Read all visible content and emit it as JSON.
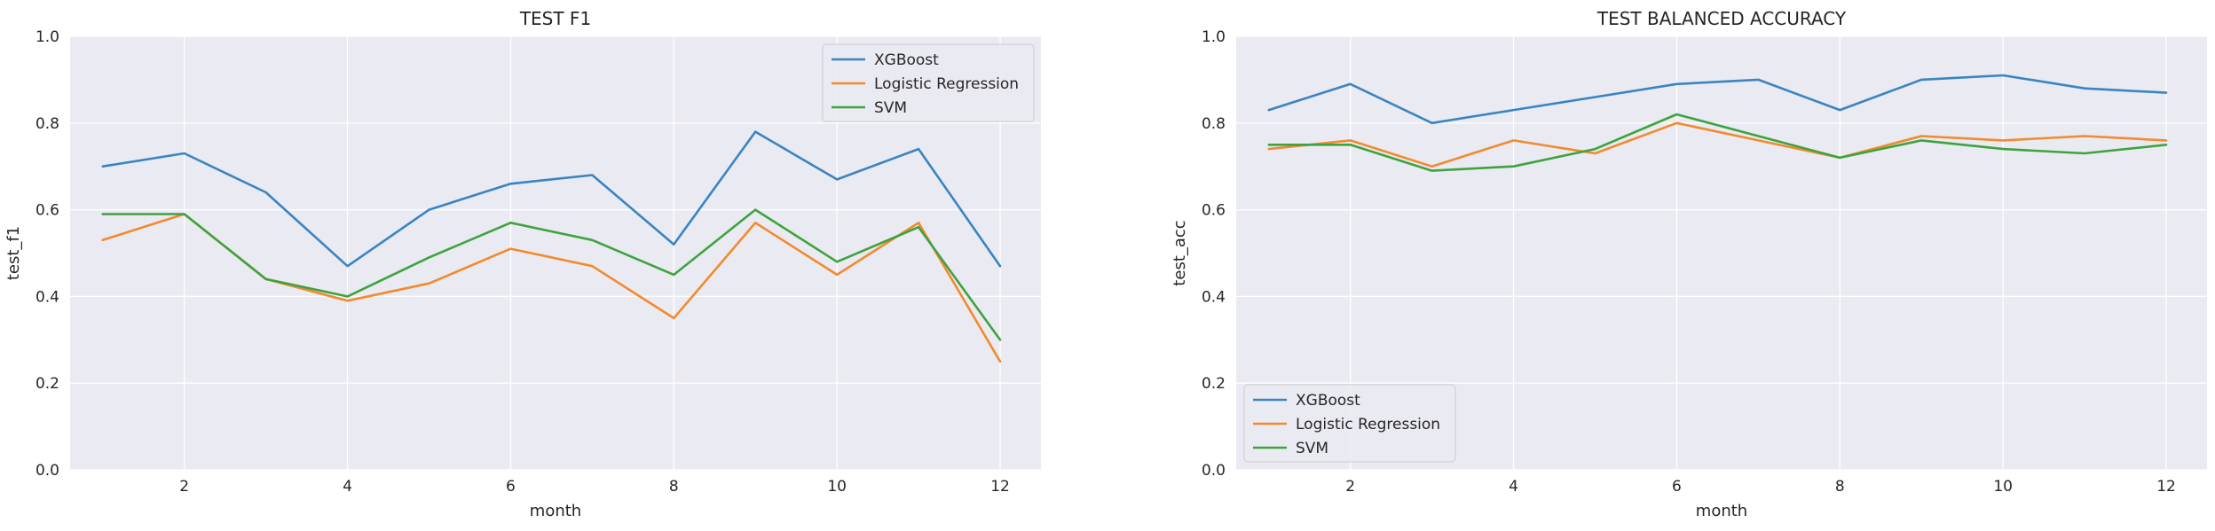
{
  "colors": {
    "background": "#ffffff",
    "plot_background": "#EAEAF2",
    "grid": "#ffffff",
    "text": "#262626",
    "legend_border": "#cccccc",
    "xgboost": "#3A84C1",
    "logistic_regression": "#F28A2E",
    "svm": "#3EA33E"
  },
  "chart_data": [
    {
      "type": "line",
      "title": "TEST F1",
      "xlabel": "month",
      "ylabel": "test_f1",
      "xlim": [
        0.6,
        12.5
      ],
      "ylim": [
        0,
        1
      ],
      "xticks": [
        2,
        4,
        6,
        8,
        10,
        12
      ],
      "yticks": [
        0.0,
        0.2,
        0.4,
        0.6,
        0.8,
        1.0
      ],
      "ytick_labels": [
        "0.0",
        "0.2",
        "0.4",
        "0.6",
        "0.8",
        "1.0"
      ],
      "grid": true,
      "legend_position": "top-right",
      "x": [
        1,
        2,
        3,
        4,
        5,
        6,
        7,
        8,
        9,
        10,
        11,
        12
      ],
      "series": [
        {
          "name": "XGBoost",
          "color": "#3A84C1",
          "values": [
            0.7,
            0.73,
            0.64,
            0.47,
            0.6,
            0.66,
            0.68,
            0.52,
            0.78,
            0.67,
            0.74,
            0.47
          ]
        },
        {
          "name": "Logistic Regression",
          "color": "#F28A2E",
          "values": [
            0.53,
            0.59,
            0.44,
            0.39,
            0.43,
            0.51,
            0.47,
            0.35,
            0.57,
            0.45,
            0.57,
            0.25
          ]
        },
        {
          "name": "SVM",
          "color": "#3EA33E",
          "values": [
            0.59,
            0.59,
            0.44,
            0.4,
            0.49,
            0.57,
            0.53,
            0.45,
            0.6,
            0.48,
            0.56,
            0.3
          ]
        }
      ]
    },
    {
      "type": "line",
      "title": "TEST BALANCED ACCURACY",
      "xlabel": "month",
      "ylabel": "test_acc",
      "xlim": [
        0.6,
        12.5
      ],
      "ylim": [
        0,
        1
      ],
      "xticks": [
        2,
        4,
        6,
        8,
        10,
        12
      ],
      "yticks": [
        0.0,
        0.2,
        0.4,
        0.6,
        0.8,
        1.0
      ],
      "ytick_labels": [
        "0.0",
        "0.2",
        "0.4",
        "0.6",
        "0.8",
        "1.0"
      ],
      "grid": true,
      "legend_position": "bottom-left",
      "x": [
        1,
        2,
        3,
        4,
        5,
        6,
        7,
        8,
        9,
        10,
        11,
        12
      ],
      "series": [
        {
          "name": "XGBoost",
          "color": "#3A84C1",
          "values": [
            0.83,
            0.89,
            0.8,
            0.83,
            0.86,
            0.89,
            0.9,
            0.83,
            0.9,
            0.91,
            0.88,
            0.87
          ]
        },
        {
          "name": "Logistic Regression",
          "color": "#F28A2E",
          "values": [
            0.74,
            0.76,
            0.7,
            0.76,
            0.73,
            0.8,
            0.76,
            0.72,
            0.77,
            0.76,
            0.77,
            0.76
          ]
        },
        {
          "name": "SVM",
          "color": "#3EA33E",
          "values": [
            0.75,
            0.75,
            0.69,
            0.7,
            0.74,
            0.82,
            0.77,
            0.72,
            0.76,
            0.74,
            0.73,
            0.75
          ]
        }
      ]
    }
  ]
}
